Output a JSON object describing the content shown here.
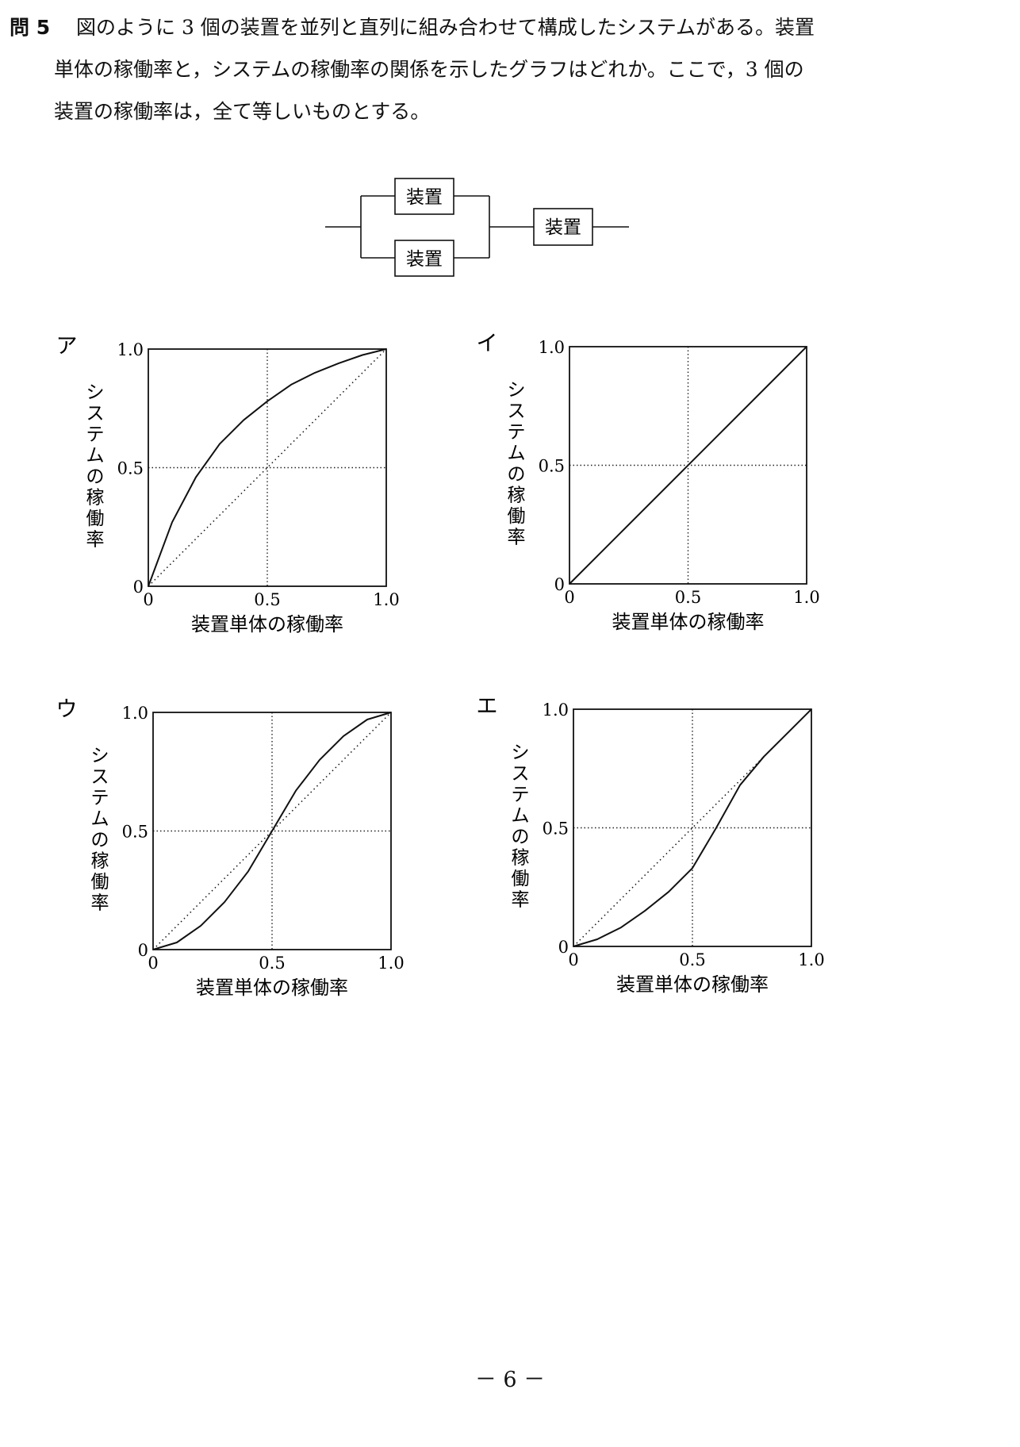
{
  "question": {
    "number": "問 5",
    "line1": "図のように 3 個の装置を並列と直列に組み合わせて構成したシステムがある。装置",
    "line2": "単体の稼働率と，システムの稼働率の関係を示したグラフはどれか。ここで，3 個の",
    "line3": "装置の稼働率は，全て等しいものとする。"
  },
  "diagram": {
    "box_label": "装置",
    "parallel": [
      "装置",
      "装置"
    ],
    "series": [
      "装置"
    ]
  },
  "charts_common": {
    "x_ticks": [
      "0",
      "0.5",
      "1.0"
    ],
    "y_ticks": [
      "0",
      "0.5",
      "1.0"
    ],
    "xlabel": "装置単体の稼働率",
    "ylabel": "システムの稼働率"
  },
  "chart_data": [
    {
      "label": "ア",
      "type": "line",
      "xlabel": "装置単体の稼働率",
      "ylabel": "システムの稼働率",
      "xlim": [
        0,
        1
      ],
      "ylim": [
        0,
        1
      ],
      "gridlines": [
        0.5
      ],
      "series": [
        {
          "style": "solid",
          "x": [
            0,
            0.1,
            0.2,
            0.3,
            0.4,
            0.5,
            0.6,
            0.7,
            0.8,
            0.9,
            1.0
          ],
          "y": [
            0,
            0.27,
            0.46,
            0.6,
            0.7,
            0.78,
            0.85,
            0.9,
            0.94,
            0.975,
            1.0
          ]
        },
        {
          "style": "dotted",
          "x": [
            0,
            1
          ],
          "y": [
            0,
            1
          ]
        }
      ]
    },
    {
      "label": "イ",
      "type": "line",
      "xlabel": "装置単体の稼働率",
      "ylabel": "システムの稼働率",
      "xlim": [
        0,
        1
      ],
      "ylim": [
        0,
        1
      ],
      "gridlines": [
        0.5
      ],
      "series": [
        {
          "style": "solid",
          "x": [
            0,
            1
          ],
          "y": [
            0,
            1
          ]
        }
      ]
    },
    {
      "label": "ウ",
      "type": "line",
      "xlabel": "装置単体の稼働率",
      "ylabel": "システムの稼働率",
      "xlim": [
        0,
        1
      ],
      "ylim": [
        0,
        1
      ],
      "gridlines": [
        0.5
      ],
      "series": [
        {
          "style": "solid",
          "x": [
            0,
            0.1,
            0.2,
            0.3,
            0.4,
            0.5,
            0.6,
            0.7,
            0.8,
            0.9,
            1.0
          ],
          "y": [
            0,
            0.03,
            0.1,
            0.2,
            0.33,
            0.5,
            0.67,
            0.8,
            0.9,
            0.97,
            1.0
          ]
        },
        {
          "style": "dotted",
          "x": [
            0,
            1
          ],
          "y": [
            0,
            1
          ]
        }
      ]
    },
    {
      "label": "エ",
      "type": "line",
      "xlabel": "装置単体の稼働率",
      "ylabel": "システムの稼働率",
      "xlim": [
        0,
        1
      ],
      "ylim": [
        0,
        1
      ],
      "gridlines": [
        0.5
      ],
      "series": [
        {
          "style": "solid",
          "x": [
            0,
            0.1,
            0.2,
            0.3,
            0.4,
            0.5,
            0.6,
            0.7,
            0.8,
            0.9,
            1.0
          ],
          "y": [
            0,
            0.03,
            0.08,
            0.15,
            0.23,
            0.33,
            0.5,
            0.68,
            0.8,
            0.9,
            1.0
          ]
        },
        {
          "style": "dotted",
          "x": [
            0,
            1
          ],
          "y": [
            0,
            1
          ]
        }
      ]
    }
  ],
  "page_number": "－ 6 －"
}
